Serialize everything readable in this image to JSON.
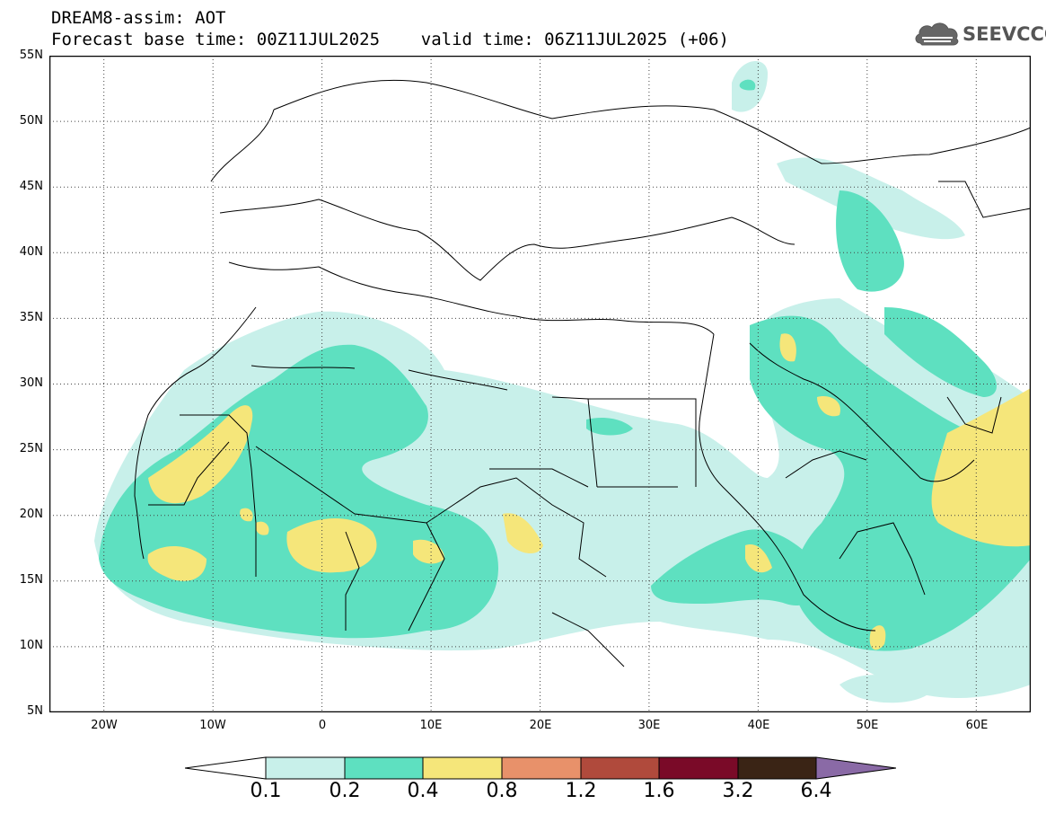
{
  "title": {
    "line1": "DREAM8-assim: AOT",
    "line2": "Forecast base time: 00Z11JUL2025    valid time: 06Z11JUL2025 (+06)"
  },
  "logo": {
    "text": "SEEVCCC",
    "icon": "cloud-icon"
  },
  "map": {
    "lat_labels": [
      "55N",
      "50N",
      "45N",
      "40N",
      "35N",
      "30N",
      "25N",
      "20N",
      "15N",
      "10N",
      "5N"
    ],
    "lon_labels": [
      "20W",
      "10W",
      "0",
      "10E",
      "20E",
      "30E",
      "40E",
      "50E",
      "60E"
    ],
    "lat_range": [
      5,
      55
    ],
    "lon_range": [
      -25,
      65
    ],
    "grid": "dotted"
  },
  "colorbar": {
    "labels": [
      "0.1",
      "0.2",
      "0.4",
      "0.8",
      "1.2",
      "1.6",
      "3.2",
      "6.4"
    ],
    "colors": [
      "#ffffff",
      "#c8f0ea",
      "#5ee0c0",
      "#f5e67a",
      "#e8916a",
      "#b04a3c",
      "#7a0a28",
      "#3a2415",
      "#8a6aa6"
    ]
  }
}
